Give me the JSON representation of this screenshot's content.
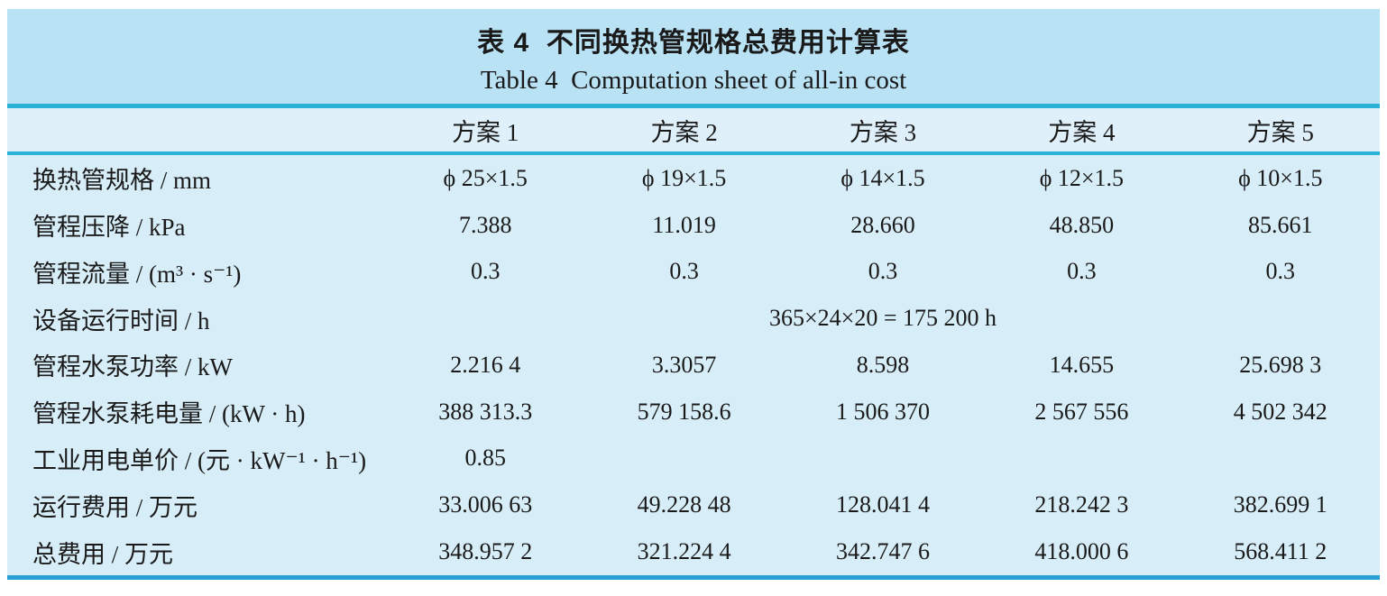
{
  "table": {
    "title_zh": "表 4  不同换热管规格总费用计算表",
    "title_en": "Table 4  Computation sheet of all-in cost",
    "columns": [
      "方案 1",
      "方案 2",
      "方案 3",
      "方案 4",
      "方案 5"
    ],
    "rows": [
      {
        "label": "换热管规格 / mm",
        "values": [
          "ϕ 25×1.5",
          "ϕ 19×1.5",
          "ϕ 14×1.5",
          "ϕ 12×1.5",
          "ϕ 10×1.5"
        ]
      },
      {
        "label": "管程压降 / kPa",
        "values": [
          "7.388",
          "11.019",
          "28.660",
          "48.850",
          "85.661"
        ]
      },
      {
        "label": "管程流量 / (m³ · s⁻¹)",
        "values": [
          "0.3",
          "0.3",
          "0.3",
          "0.3",
          "0.3"
        ]
      },
      {
        "label": "设备运行时间 / h",
        "span_value": "365×24×20 = 175 200 h"
      },
      {
        "label": "管程水泵功率 / kW",
        "values": [
          "2.216 4",
          "3.3057",
          "8.598",
          "14.655",
          "25.698 3"
        ]
      },
      {
        "label": "管程水泵耗电量 / (kW · h)",
        "values": [
          "388 313.3",
          "579 158.6",
          "1 506 370",
          "2 567 556",
          "4 502 342"
        ]
      },
      {
        "label": "工业用电单价 / (元 · kW⁻¹ · h⁻¹)",
        "values": [
          "0.85",
          "",
          "",
          "",
          ""
        ]
      },
      {
        "label": "运行费用 / 万元",
        "values": [
          "33.006 63",
          "49.228 48",
          "128.041 4",
          "218.242 3",
          "382.699 1"
        ]
      },
      {
        "label": "总费用 / 万元",
        "values": [
          "348.957 2",
          "321.224 4",
          "342.747 6",
          "418.000 6",
          "568.411 2"
        ]
      }
    ]
  },
  "colors": {
    "band": "#b9e2f5",
    "header_row": "#dff0fa",
    "body_bg": "#d7edf8",
    "rule": "#29b3d8",
    "bottom_rule": "#2a9ed6"
  }
}
